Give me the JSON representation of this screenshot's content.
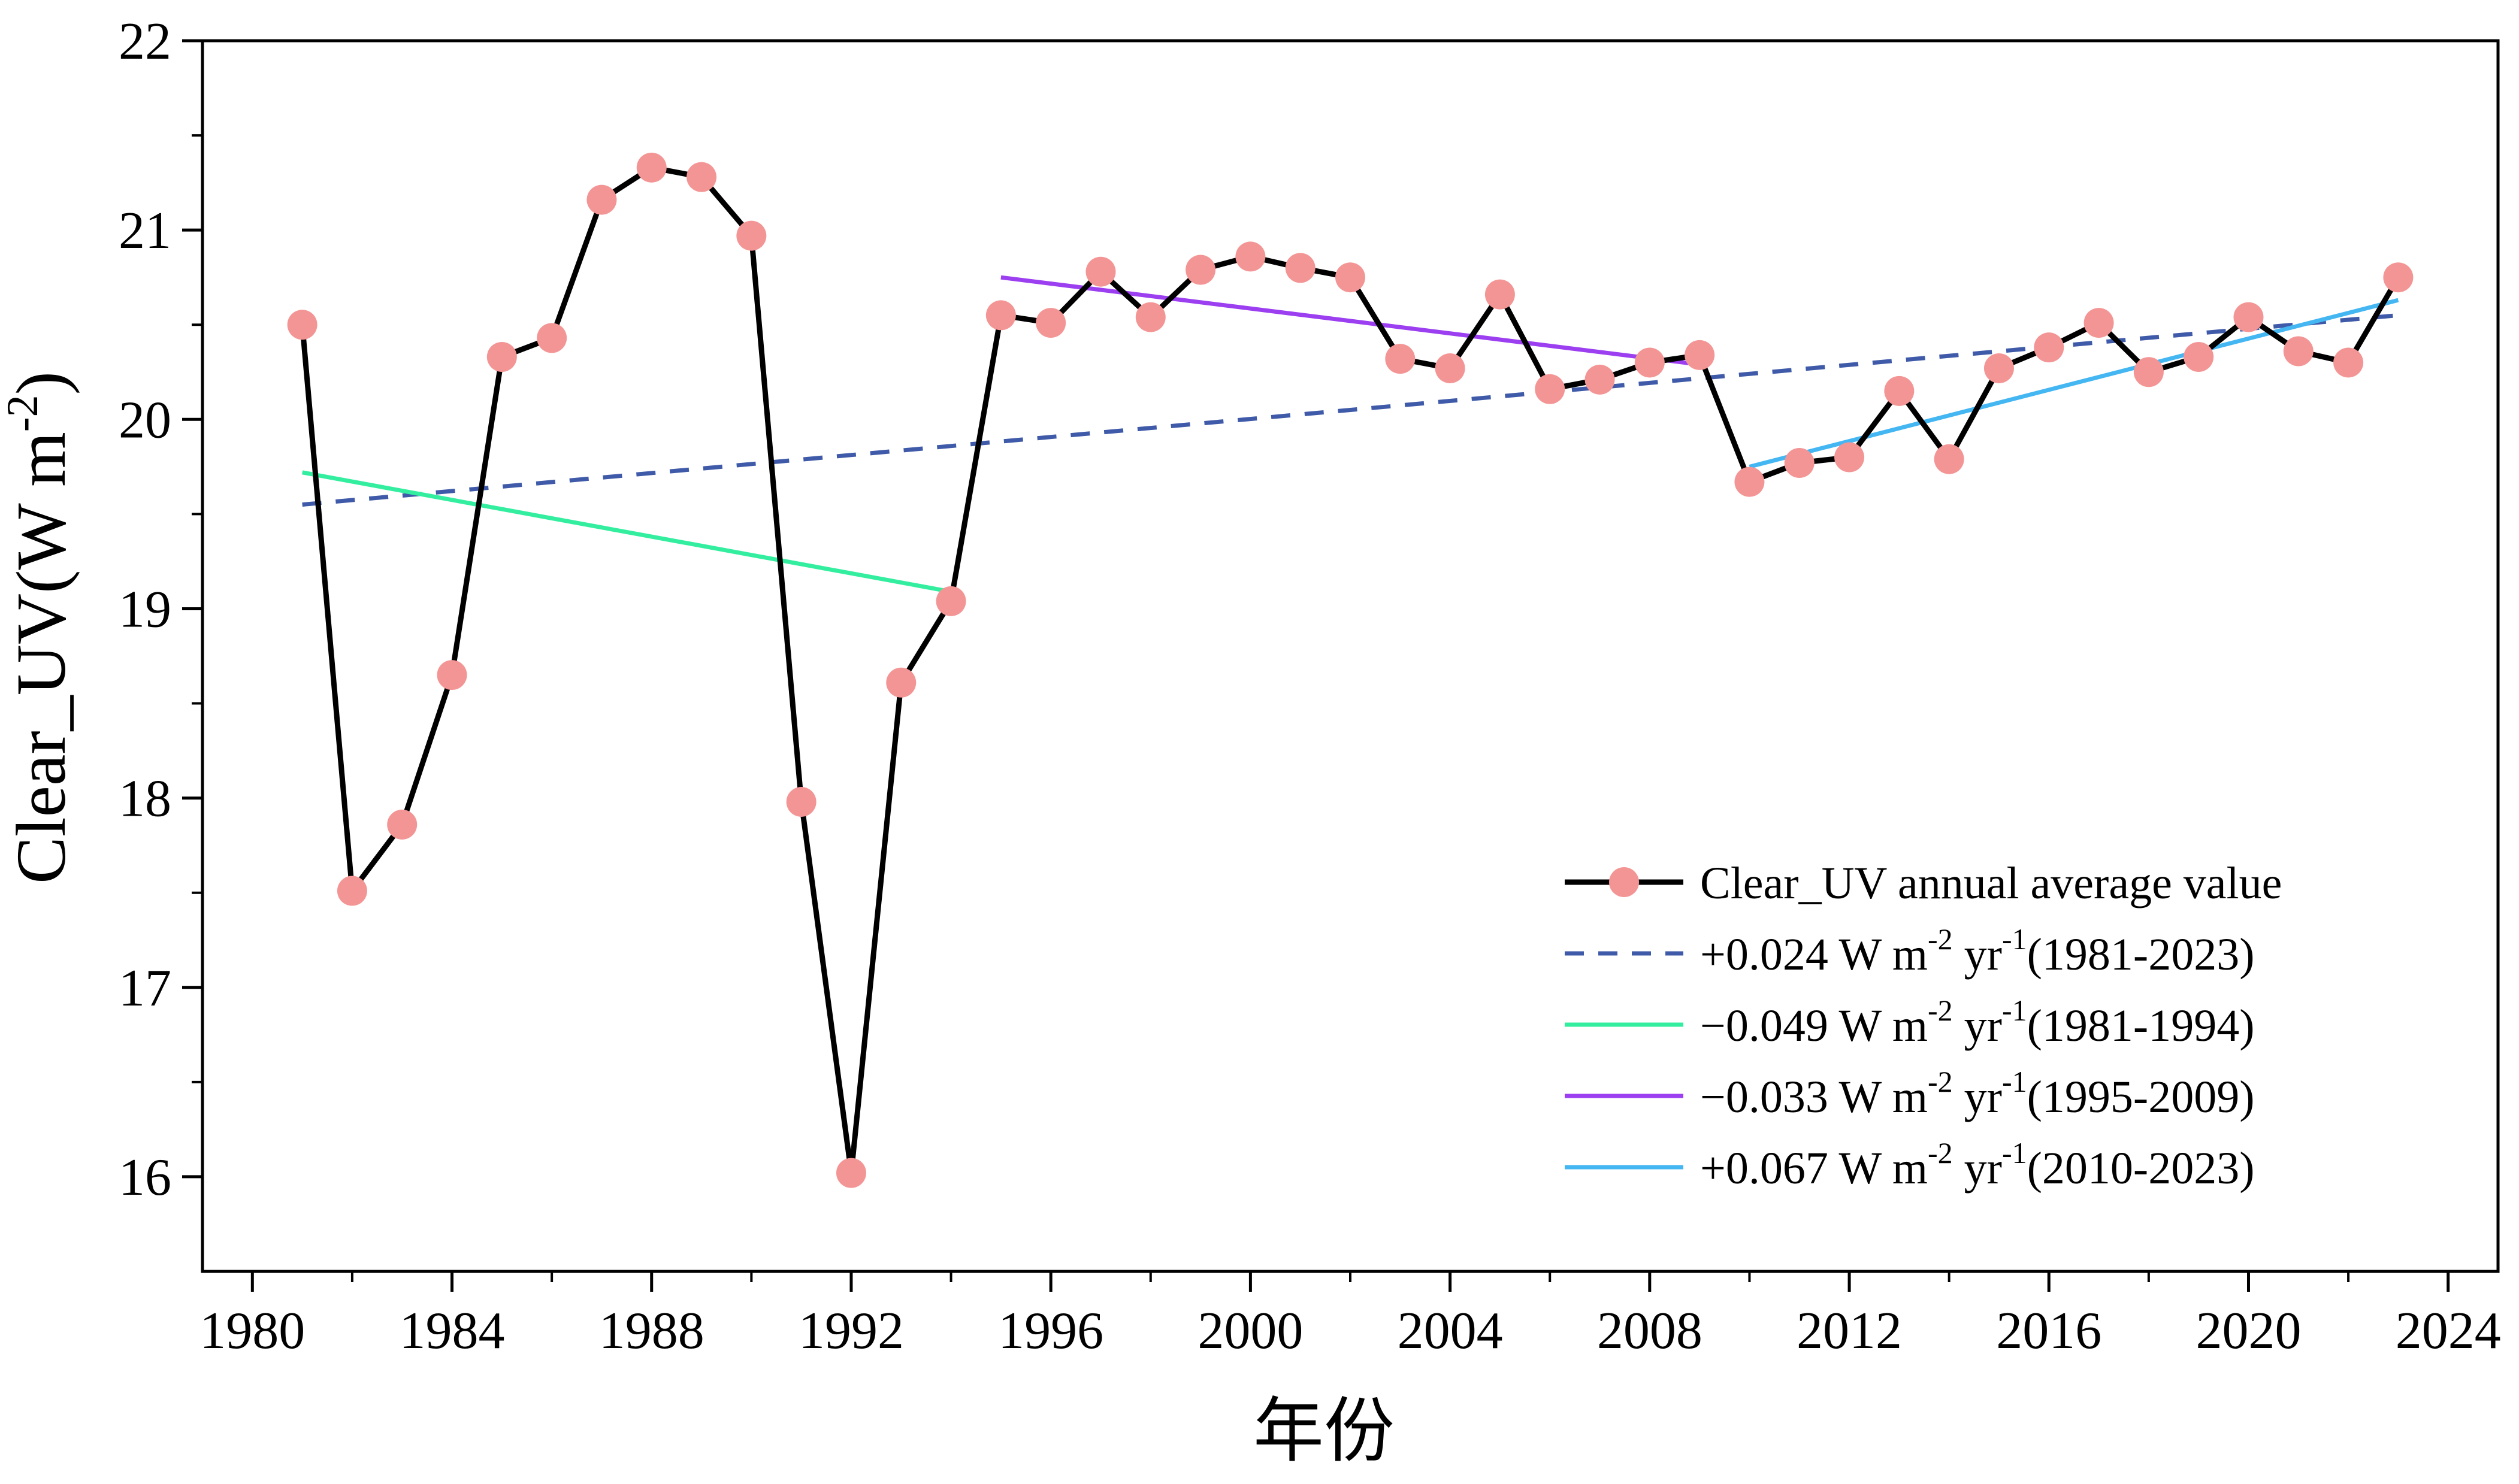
{
  "chart_data": {
    "type": "line",
    "title": "",
    "xlabel": "年份",
    "ylabel": "Clear_UV(W m",
    "ylabel_sup": "-2",
    "ylabel_close": ")",
    "xlim": [
      1979,
      2025
    ],
    "ylim": [
      15.5,
      22
    ],
    "xticks": [
      1980,
      1984,
      1988,
      1992,
      1996,
      2000,
      2004,
      2008,
      2012,
      2016,
      2020,
      2024
    ],
    "yticks": [
      16,
      17,
      18,
      19,
      20,
      21,
      22
    ],
    "grid": false,
    "legend_position": "lower-right",
    "series": [
      {
        "name": "Clear_UV annual average value",
        "kind": "line-marker",
        "color": "#000000",
        "marker_color": "#f49595",
        "x": [
          1981,
          1982,
          1983,
          1984,
          1985,
          1986,
          1987,
          1988,
          1989,
          1990,
          1991,
          1992,
          1993,
          1994,
          1995,
          1996,
          1997,
          1998,
          1999,
          2000,
          2001,
          2002,
          2003,
          2004,
          2005,
          2006,
          2007,
          2008,
          2009,
          2010,
          2011,
          2012,
          2013,
          2014,
          2015,
          2016,
          2017,
          2018,
          2019,
          2020,
          2021,
          2022,
          2023
        ],
        "y": [
          20.5,
          17.51,
          17.86,
          18.65,
          20.33,
          20.43,
          21.16,
          21.33,
          21.28,
          20.97,
          17.98,
          16.02,
          18.61,
          19.04,
          20.55,
          20.51,
          20.78,
          20.54,
          20.79,
          20.86,
          20.8,
          20.75,
          20.32,
          20.27,
          20.66,
          20.16,
          20.21,
          20.3,
          20.34,
          19.67,
          19.77,
          19.8,
          20.15,
          19.79,
          20.27,
          20.38,
          20.51,
          20.25,
          20.33,
          20.54,
          20.36,
          20.3,
          20.75
        ]
      },
      {
        "name": "+0.024 W m-2 yr-1(1981-2023)",
        "kind": "dashed",
        "color": "#3f5aa8",
        "x": [
          1981,
          2023
        ],
        "y": [
          19.55,
          20.55
        ]
      },
      {
        "name": "−0.049 W m-2 yr-1(1981-1994)",
        "kind": "solid",
        "color": "#34eea0",
        "x": [
          1981,
          1994
        ],
        "y": [
          19.72,
          19.09
        ]
      },
      {
        "name": "−0.033 W m-2 yr-1(1995-2009)",
        "kind": "solid",
        "color": "#9b3ff0",
        "x": [
          1995,
          2009
        ],
        "y": [
          20.75,
          20.29
        ]
      },
      {
        "name": "+0.067 W m-2 yr-1(2010-2023)",
        "kind": "solid",
        "color": "#44b6f2",
        "x": [
          2010,
          2023
        ],
        "y": [
          19.75,
          20.63
        ]
      }
    ]
  },
  "legend": [
    {
      "prefix": "Clear_UV annual average value",
      "sup1": "",
      "mid": "",
      "sup2": "",
      "suffix": ""
    },
    {
      "prefix": "+0.024 W m",
      "sup1": "-2",
      "mid": " yr",
      "sup2": "-1",
      "suffix": "(1981-2023)"
    },
    {
      "prefix": "−0.049 W m",
      "sup1": "-2",
      "mid": " yr",
      "sup2": "-1",
      "suffix": "(1981-1994)"
    },
    {
      "prefix": "−0.033 W m",
      "sup1": "-2",
      "mid": " yr",
      "sup2": "-1",
      "suffix": "(1995-2009)"
    },
    {
      "prefix": "+0.067 W m",
      "sup1": "-2",
      "mid": " yr",
      "sup2": "-1",
      "suffix": "(2010-2023)"
    }
  ]
}
